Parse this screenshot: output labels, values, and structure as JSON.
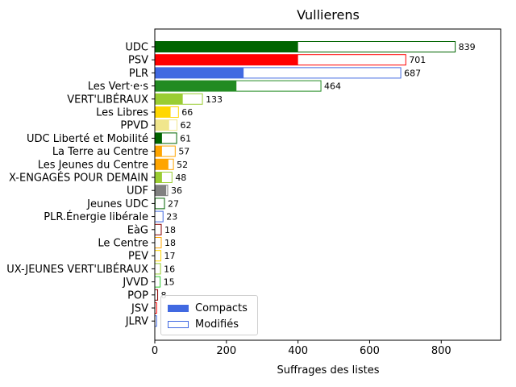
{
  "chart_data": {
    "type": "bar",
    "orientation": "horizontal",
    "title": "Vullierens",
    "xlabel": "Suffrages des listes",
    "ylabel": "",
    "xlim": [
      0,
      966
    ],
    "xticks": [
      0,
      200,
      400,
      600,
      800
    ],
    "grid": false,
    "legend": {
      "placement": "lower-left",
      "entries": [
        "Compacts",
        "Modifiés"
      ]
    },
    "categories": [
      "UDC",
      "PSV",
      "PLR",
      "Les Vert·e·s",
      "VERT'LIBÉRAUX",
      "Les Libres",
      "PPVD",
      "UDC Liberté et Mobilité",
      "La Terre au Centre",
      "Les Jeunes du Centre",
      "X-ENGAGÉS POUR DEMAIN",
      "UDF",
      "Jeunes UDC",
      "PLR.Énergie libérale",
      "EàG",
      "Le Centre",
      "PEV",
      "UX-JEUNES VERT'LIBÉRAUX",
      "JVVD",
      "POP",
      "JSV",
      "JLRV"
    ],
    "colors": [
      "#006400",
      "#ff0000",
      "#4169e1",
      "#228b22",
      "#9acd32",
      "#ffd700",
      "#f0e68c",
      "#006400",
      "#ffa500",
      "#ffa500",
      "#9acd32",
      "#808080",
      "#006400",
      "#4169e1",
      "#8b0000",
      "#ffa500",
      "#ffd700",
      "#9acd32",
      "#32cd32",
      "#8b0000",
      "#ff0000",
      "#4169e1"
    ],
    "series": [
      {
        "name": "Compacts",
        "values": [
          400,
          400,
          248,
          228,
          78,
          44,
          40,
          20,
          20,
          38,
          20,
          32,
          2,
          0,
          0,
          0,
          0,
          0,
          0,
          0,
          0,
          0
        ]
      },
      {
        "name": "Modifiés",
        "values": [
          839,
          701,
          687,
          464,
          133,
          66,
          62,
          61,
          57,
          52,
          48,
          36,
          27,
          23,
          18,
          18,
          17,
          16,
          15,
          8,
          5,
          5
        ]
      }
    ],
    "data_labels": [
      "839",
      "701",
      "687",
      "464",
      "133",
      "66",
      "62",
      "61",
      "57",
      "52",
      "48",
      "36",
      "27",
      "23",
      "18",
      "18",
      "17",
      "16",
      "15",
      "8",
      "",
      ""
    ]
  }
}
